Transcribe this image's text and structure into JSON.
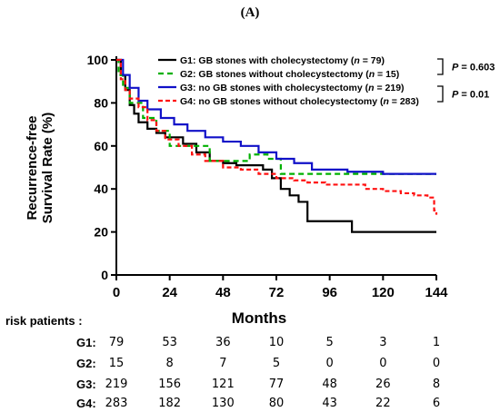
{
  "panel_label": "(A)",
  "chart_data": {
    "type": "line",
    "ylabel_lines": [
      "Recurrence-free",
      "Survival Rate (%)"
    ],
    "xlabel": "Months",
    "xlim": [
      0,
      144
    ],
    "ylim": [
      0,
      100
    ],
    "x_ticks": [
      0,
      24,
      48,
      72,
      96,
      120,
      144
    ],
    "y_ticks": [
      0,
      20,
      40,
      60,
      80,
      100
    ],
    "grid": false,
    "legend_position": "top",
    "legend": [
      {
        "id": "g1",
        "prefix": "G1: GB stones with cholecystectomy (",
        "n": "n",
        "count": " = 79)"
      },
      {
        "id": "g2",
        "prefix": "G2: GB stones without cholecystectomy (",
        "n": "n",
        "count": " = 15)"
      },
      {
        "id": "g3",
        "prefix": "G3: no GB stones with cholecystectomy (",
        "n": "n",
        "count": " = 219)"
      },
      {
        "id": "g4",
        "prefix": "G4: no GB stones without cholecystectomy (",
        "n": "n",
        "count": " = 283)"
      }
    ],
    "pvalues": [
      "P = 0.603",
      "P = 0.01"
    ],
    "series": [
      {
        "id": "g1",
        "color": "#000000",
        "dash": "",
        "x": [
          0,
          2,
          4,
          6,
          8,
          10,
          14,
          18,
          22,
          26,
          30,
          36,
          42,
          48,
          54,
          60,
          66,
          70,
          74,
          78,
          82,
          86,
          90,
          100,
          106,
          115,
          125,
          133,
          144
        ],
        "y": [
          100,
          93,
          86,
          79,
          75,
          71,
          68,
          66,
          64,
          64,
          61,
          57,
          53,
          52,
          51,
          51,
          49,
          45,
          40,
          37,
          34,
          25,
          25,
          25,
          20,
          20,
          20,
          20,
          20
        ]
      },
      {
        "id": "g2",
        "color": "#00b000",
        "dash": "6,4",
        "x": [
          0,
          1,
          3,
          6,
          12,
          18,
          24,
          30,
          42,
          54,
          60,
          68,
          74,
          84,
          86,
          96,
          144
        ],
        "y": [
          100,
          93,
          87,
          80,
          73,
          67,
          60,
          60,
          53,
          53,
          56,
          54,
          47,
          47,
          47,
          47,
          47
        ]
      },
      {
        "id": "g3",
        "color": "#1010c8",
        "dash": "",
        "x": [
          0,
          3,
          6,
          10,
          14,
          20,
          26,
          32,
          40,
          48,
          56,
          64,
          72,
          80,
          88,
          94,
          104,
          120,
          144
        ],
        "y": [
          100,
          93,
          87,
          81,
          77,
          73,
          70,
          67,
          64,
          62,
          60,
          57,
          54,
          52,
          49,
          49,
          48,
          47,
          47
        ]
      },
      {
        "id": "g4",
        "color": "#ff1010",
        "dash": "5,3",
        "x": [
          0,
          2,
          4,
          6,
          10,
          14,
          18,
          22,
          28,
          34,
          40,
          48,
          56,
          64,
          72,
          80,
          86,
          94,
          104,
          112,
          120,
          128,
          134,
          140,
          143,
          144
        ],
        "y": [
          100,
          91,
          86,
          82,
          78,
          72,
          67,
          63,
          60,
          56,
          53,
          50,
          49,
          47,
          45,
          44,
          43,
          42,
          42,
          40,
          39,
          38,
          37,
          36,
          30,
          28
        ]
      }
    ]
  },
  "risk_table": {
    "title": "risk patients :",
    "rows": [
      {
        "label": "G1:",
        "values": [
          "79",
          "53",
          "36",
          "10",
          "5",
          "3",
          "1"
        ]
      },
      {
        "label": "G2:",
        "values": [
          "15",
          "8",
          "7",
          "5",
          "0",
          "0",
          "0"
        ]
      },
      {
        "label": "G3:",
        "values": [
          "219",
          "156",
          "121",
          "77",
          "48",
          "26",
          "8"
        ]
      },
      {
        "label": "G4:",
        "values": [
          "283",
          "182",
          "130",
          "80",
          "43",
          "22",
          "6"
        ]
      }
    ]
  }
}
